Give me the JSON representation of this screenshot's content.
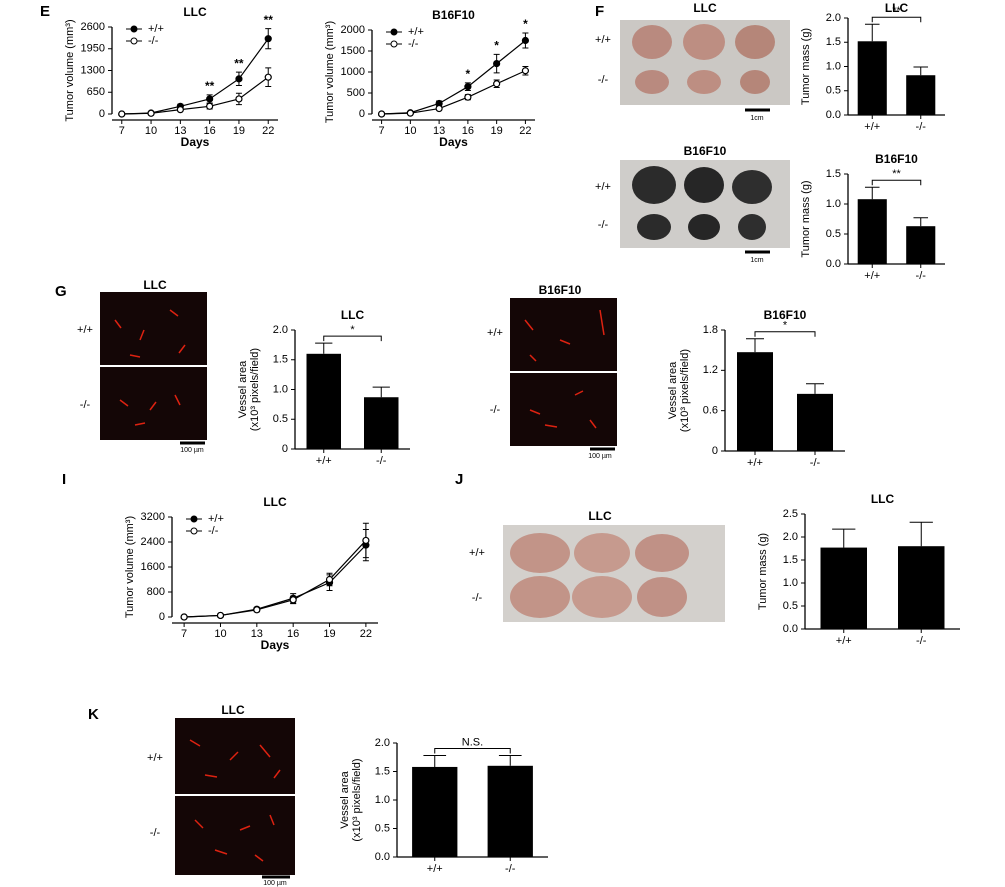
{
  "panels": [
    "E",
    "F",
    "G",
    "I",
    "J",
    "K"
  ],
  "images": [
    {
      "title": "LLC",
      "rows": [
        "+/+",
        "-/-"
      ],
      "scale_bar": "1cm"
    },
    {
      "title": "B16F10",
      "rows": [
        "+/+",
        "-/-"
      ],
      "scale_bar": "1cm"
    },
    {
      "title": "LLC",
      "rows": [
        "+/+",
        "-/-"
      ],
      "scale_bar": "100 µm"
    },
    {
      "title": "B16F10",
      "rows": [
        "+/+",
        "-/-"
      ],
      "scale_bar": "100 µm"
    },
    {
      "title": "LLC",
      "rows": [
        "+/+",
        "-/-"
      ]
    },
    {
      "title": "LLC",
      "rows": [
        "+/+",
        "-/-"
      ],
      "scale_bar": "100 µm"
    }
  ],
  "chart_data": [
    {
      "type": "line",
      "title": "LLC",
      "x_label": "Days",
      "y_label": [
        "Tumor volume (mm³)"
      ],
      "x": [
        7,
        10,
        13,
        16,
        19,
        22
      ],
      "xlim": [
        6,
        23
      ],
      "xticks": [
        7,
        10,
        13,
        16,
        19,
        22
      ],
      "ylim": [
        0,
        2600
      ],
      "yticks": [
        0,
        650,
        1300,
        1950,
        2600
      ],
      "legend": "upper left",
      "series": [
        {
          "name": "+/+",
          "color": "#000000",
          "marker": "filled",
          "values": [
            0,
            30,
            230,
            450,
            1050,
            2250
          ],
          "errors": [
            0,
            10,
            60,
            120,
            200,
            300
          ]
        },
        {
          "name": "-/-",
          "color": "#000000",
          "marker": "open",
          "values": [
            0,
            20,
            130,
            230,
            450,
            1100
          ],
          "errors": [
            0,
            10,
            40,
            80,
            170,
            280
          ]
        }
      ],
      "annotations": [
        {
          "x": 16,
          "text": "**"
        },
        {
          "x": 19,
          "text": "**"
        },
        {
          "x": 22,
          "text": "**"
        }
      ]
    },
    {
      "type": "line",
      "title": "B16F10",
      "x_label": "Days",
      "y_label": [
        "Tumor volume (mm³)"
      ],
      "x": [
        7,
        10,
        13,
        16,
        19,
        22
      ],
      "xlim": [
        6,
        23
      ],
      "xticks": [
        7,
        10,
        13,
        16,
        19,
        22
      ],
      "ylim": [
        0,
        2000
      ],
      "yticks": [
        0,
        500,
        1000,
        1500,
        2000
      ],
      "legend": "upper left",
      "series": [
        {
          "name": "+/+",
          "color": "#000000",
          "marker": "filled",
          "values": [
            0,
            30,
            250,
            650,
            1200,
            1750
          ],
          "errors": [
            0,
            10,
            60,
            90,
            220,
            180
          ]
        },
        {
          "name": "-/-",
          "color": "#000000",
          "marker": "open",
          "values": [
            0,
            20,
            130,
            400,
            720,
            1030
          ],
          "errors": [
            0,
            10,
            30,
            60,
            90,
            100
          ]
        }
      ],
      "annotations": [
        {
          "x": 16,
          "text": "*"
        },
        {
          "x": 19,
          "text": "*"
        },
        {
          "x": 22,
          "text": "*"
        }
      ]
    },
    {
      "type": "bar",
      "title": "LLC",
      "y_label": [
        "Tumor mass (g)"
      ],
      "categories": [
        "+/+",
        "-/-"
      ],
      "values": [
        1.52,
        0.82
      ],
      "errors": [
        0.35,
        0.17
      ],
      "color": "#000000",
      "ylim": [
        0,
        2.0
      ],
      "yticks": [
        {
          "value": 0,
          "label": "0.0"
        },
        0.5,
        {
          "value": 1,
          "label": "1.0"
        },
        1.5,
        {
          "value": 2,
          "label": "2.0"
        }
      ],
      "significance": "**"
    },
    {
      "type": "bar",
      "title": "B16F10",
      "y_label": [
        "Tumor mass (g)"
      ],
      "categories": [
        "+/+",
        "-/-"
      ],
      "values": [
        1.08,
        0.63
      ],
      "errors": [
        0.2,
        0.14
      ],
      "color": "#000000",
      "ylim": [
        0,
        1.5
      ],
      "yticks": [
        {
          "value": 0,
          "label": "0.0"
        },
        0.5,
        {
          "value": 1,
          "label": "1.0"
        },
        1.5
      ],
      "significance": "**"
    },
    {
      "type": "bar",
      "title": "LLC",
      "y_label": [
        "Vessel area",
        "(x10³ pixels/field)"
      ],
      "categories": [
        "+/+",
        "-/-"
      ],
      "values": [
        1.6,
        0.87
      ],
      "errors": [
        0.18,
        0.17
      ],
      "color": "#000000",
      "ylim": [
        0,
        2.0
      ],
      "yticks": [
        0,
        0.5,
        {
          "value": 1,
          "label": "1.0"
        },
        1.5,
        {
          "value": 2,
          "label": "2.0"
        }
      ],
      "significance": "*"
    },
    {
      "type": "bar",
      "title": "B16F10",
      "y_label": [
        "Vessel area",
        "(x10³ pixels/field)"
      ],
      "categories": [
        "+/+",
        "-/-"
      ],
      "values": [
        1.47,
        0.85
      ],
      "errors": [
        0.2,
        0.15
      ],
      "color": "#000000",
      "ylim": [
        0,
        1.8
      ],
      "yticks": [
        0,
        0.6,
        1.2,
        1.8
      ],
      "significance": "*"
    },
    {
      "type": "line",
      "title": "LLC",
      "x_label": "Days",
      "y_label": [
        "Tumor volume (mm³)"
      ],
      "x": [
        7,
        10,
        13,
        16,
        19,
        22
      ],
      "xlim": [
        6,
        23
      ],
      "xticks": [
        7,
        10,
        13,
        16,
        19,
        22
      ],
      "ylim": [
        0,
        3200
      ],
      "yticks": [
        0,
        800,
        1600,
        2400,
        3200
      ],
      "legend": "upper left",
      "series": [
        {
          "name": "+/+",
          "color": "#000000",
          "marker": "filled",
          "values": [
            0,
            50,
            250,
            600,
            1100,
            2300
          ],
          "errors": [
            0,
            20,
            60,
            150,
            250,
            500
          ]
        },
        {
          "name": "-/-",
          "color": "#000000",
          "marker": "open",
          "values": [
            0,
            50,
            230,
            550,
            1200,
            2450
          ],
          "errors": [
            0,
            20,
            60,
            120,
            200,
            550
          ]
        }
      ]
    },
    {
      "type": "bar",
      "title": "LLC",
      "y_label": [
        "Tumor mass (g)"
      ],
      "categories": [
        "+/+",
        "-/-"
      ],
      "values": [
        1.77,
        1.8
      ],
      "errors": [
        0.4,
        0.52
      ],
      "color": "#000000",
      "ylim": [
        0,
        2.5
      ],
      "yticks": [
        {
          "value": 0,
          "label": "0.0"
        },
        0.5,
        {
          "value": 1,
          "label": "1.0"
        },
        1.5,
        {
          "value": 2,
          "label": "2.0"
        },
        2.5
      ]
    },
    {
      "type": "bar",
      "y_label": [
        "Vessel area",
        "(x10³ pixels/field)"
      ],
      "categories": [
        "+/+",
        "-/-"
      ],
      "values": [
        1.58,
        1.6
      ],
      "errors": [
        0.2,
        0.18
      ],
      "color": "#000000",
      "ylim": [
        0,
        2.0
      ],
      "yticks": [
        {
          "value": 0,
          "label": "0.0"
        },
        0.5,
        {
          "value": 1,
          "label": "1.0"
        },
        1.5,
        {
          "value": 2,
          "label": "2.0"
        }
      ],
      "significance": "N.S."
    }
  ]
}
